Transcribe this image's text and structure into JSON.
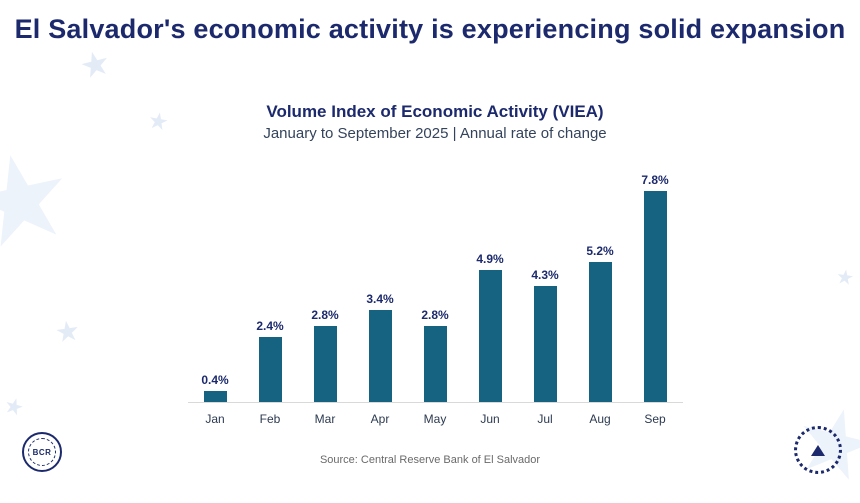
{
  "page": {
    "headline": "El Salvador's economic activity is experiencing solid expansion",
    "source": "Source: Central Reserve Bank of El Salvador"
  },
  "chart_data": {
    "type": "bar",
    "title": "Volume Index of Economic Activity (VIEA)",
    "subtitle": "January to September 2025 | Annual rate of change",
    "categories": [
      "Jan",
      "Feb",
      "Mar",
      "Apr",
      "May",
      "Jun",
      "Jul",
      "Aug",
      "Sep"
    ],
    "values": [
      0.4,
      2.4,
      2.8,
      3.4,
      2.8,
      4.9,
      4.3,
      5.2,
      7.8
    ],
    "labels": [
      "0.4%",
      "2.4%",
      "2.8%",
      "3.4%",
      "2.8%",
      "4.9%",
      "4.3%",
      "5.2%",
      "7.8%"
    ],
    "xlabel": "",
    "ylabel": "",
    "ylim": [
      0,
      8.5
    ],
    "grid": false,
    "legend": false,
    "bar_color": "#156381",
    "label_color": "#1c2a6d",
    "value_label_format": "percent"
  },
  "branding": {
    "bcr_seal_text": "BCR",
    "accent_navy": "#1c2a6d",
    "accent_teal": "#156381"
  },
  "decor": {
    "star_glyph": "★"
  }
}
